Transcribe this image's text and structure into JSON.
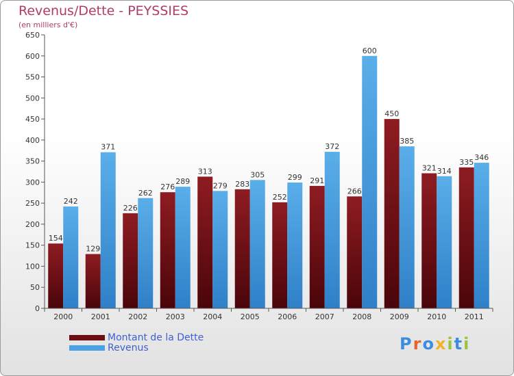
{
  "header": {
    "title": "Revenus/Dette - PEYSSIES",
    "subtitle": "(en milliers d'€)"
  },
  "legend": {
    "items": [
      {
        "label": "Montant de la Dette",
        "color": "#6b0f14"
      },
      {
        "label": "Revenus",
        "color": "#4aa2e4"
      }
    ]
  },
  "logo": {
    "text": "Proxiti",
    "letters": [
      {
        "ch": "P",
        "color": "#3c8de0"
      },
      {
        "ch": "r",
        "color": "#e8632b"
      },
      {
        "ch": "o",
        "color": "#3c8de0"
      },
      {
        "ch": "x",
        "color": "#f0b323"
      },
      {
        "ch": "i",
        "color": "#9bc53d"
      },
      {
        "ch": "t",
        "color": "#3c8de0"
      },
      {
        "ch": "i",
        "color": "#9bc53d"
      }
    ]
  },
  "chart_data": {
    "type": "bar",
    "title": "Revenus/Dette - PEYSSIES",
    "subtitle": "(en milliers d'€)",
    "xlabel": "",
    "ylabel": "",
    "categories": [
      "2000",
      "2001",
      "2002",
      "2003",
      "2004",
      "2005",
      "2006",
      "2007",
      "2008",
      "2009",
      "2010",
      "2011"
    ],
    "series": [
      {
        "name": "Montant de la Dette",
        "color": "#6b0f14",
        "values": [
          154,
          129,
          226,
          276,
          313,
          283,
          252,
          291,
          266,
          450,
          321,
          335
        ]
      },
      {
        "name": "Revenus",
        "color": "#4aa2e4",
        "values": [
          242,
          371,
          262,
          289,
          279,
          305,
          299,
          372,
          600,
          385,
          314,
          346
        ]
      }
    ],
    "ylim": [
      0,
      650
    ],
    "yticks": [
      0,
      50,
      100,
      150,
      200,
      250,
      300,
      350,
      400,
      450,
      500,
      550,
      600,
      650
    ],
    "grid": false,
    "legend_position": "bottom-left"
  }
}
